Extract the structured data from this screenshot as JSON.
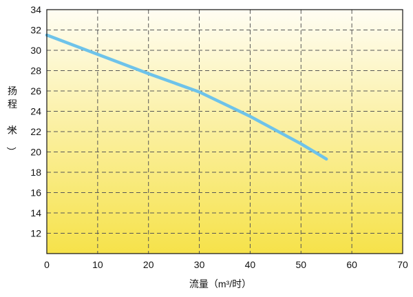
{
  "chart_data": {
    "type": "line",
    "title": "",
    "xlabel": "流量（m³/时）",
    "ylabel": "扬程（米）",
    "xlim": [
      0,
      70
    ],
    "ylim": [
      10,
      34
    ],
    "xticks": [
      0,
      10,
      20,
      30,
      40,
      50,
      60,
      70
    ],
    "yticks": [
      12,
      14,
      16,
      18,
      20,
      22,
      24,
      26,
      28,
      30,
      32,
      34
    ],
    "grid": true,
    "grid_style": "dashed",
    "legend": "none",
    "background_gradient": [
      "#fffdf3",
      "#f6e24a"
    ],
    "series": [
      {
        "color": "#6ec3ea",
        "x": [
          0,
          10,
          20,
          30,
          40,
          50,
          55
        ],
        "y": [
          31.5,
          29.6,
          27.7,
          25.9,
          23.5,
          20.8,
          19.3
        ]
      }
    ]
  }
}
